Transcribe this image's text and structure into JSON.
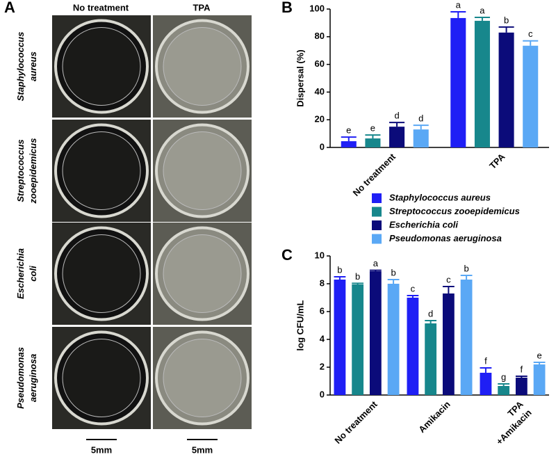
{
  "panel_a": {
    "label": "A",
    "columns": [
      "No treatment",
      "TPA"
    ],
    "rows": [
      [
        "Staphylococcus",
        "aureus"
      ],
      [
        "Streptococcus",
        "zooepidemicus"
      ],
      [
        "Escherichia",
        "coli"
      ],
      [
        "Pseudomonas",
        "aeruginosa"
      ]
    ],
    "scale_bars": [
      "5mm",
      "5mm"
    ]
  },
  "chart_data": [
    {
      "type": "bar",
      "panel_label": "B",
      "ylabel": "Dispersal (%)",
      "categories": [
        "No treatment",
        "TPA"
      ],
      "ylim": [
        0,
        100
      ],
      "yticks": [
        0,
        20,
        40,
        60,
        80,
        100
      ],
      "series": [
        {
          "name": "Staphylococcus aureus",
          "color": "#1f1ff5",
          "values": [
            4.5,
            93.5
          ],
          "errors": [
            3,
            4.5
          ],
          "letters": [
            "e",
            "a"
          ]
        },
        {
          "name": "Streptococcus zooepidemicus",
          "color": "#17878c",
          "values": [
            6.5,
            91.5
          ],
          "errors": [
            2.5,
            2.5
          ],
          "letters": [
            "e",
            "a"
          ]
        },
        {
          "name": "Escherichia coli",
          "color": "#0b0b7a",
          "values": [
            15,
            83
          ],
          "errors": [
            3,
            4
          ],
          "letters": [
            "d",
            "b"
          ]
        },
        {
          "name": "Pseudomonas aeruginosa",
          "color": "#5aa8f5",
          "values": [
            13,
            73.5
          ],
          "errors": [
            3,
            3.5
          ],
          "letters": [
            "d",
            "c"
          ]
        }
      ]
    },
    {
      "type": "bar",
      "panel_label": "C",
      "ylabel": "log CFU/mL",
      "categories": [
        "No treatment",
        "Amikacin",
        "TPA\n+Amikacin"
      ],
      "ylim": [
        0,
        10
      ],
      "yticks": [
        0,
        2,
        4,
        6,
        8,
        10
      ],
      "series": [
        {
          "color": "#1f1ff5",
          "values": [
            8.3,
            7.0,
            1.6
          ],
          "errors": [
            0.2,
            0.15,
            0.35
          ],
          "letters": [
            "b",
            "c",
            "f"
          ]
        },
        {
          "color": "#17878c",
          "values": [
            7.95,
            5.15,
            0.65
          ],
          "errors": [
            0.08,
            0.2,
            0.15
          ],
          "letters": [
            "b",
            "d",
            "g"
          ]
        },
        {
          "color": "#0b0b7a",
          "values": [
            8.9,
            7.3,
            1.25
          ],
          "errors": [
            0.07,
            0.5,
            0.1
          ],
          "letters": [
            "a",
            "c",
            "f"
          ]
        },
        {
          "color": "#5aa8f5",
          "values": [
            8.0,
            8.3,
            2.2
          ],
          "errors": [
            0.3,
            0.3,
            0.15
          ],
          "letters": [
            "b",
            "b",
            "e"
          ]
        }
      ]
    }
  ]
}
